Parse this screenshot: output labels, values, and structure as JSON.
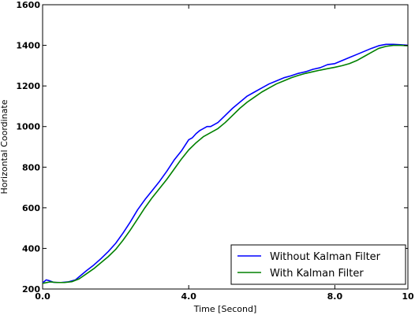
{
  "chart_data": {
    "type": "line",
    "title": "",
    "xlabel": "Time [Second]",
    "ylabel": "Horizontal Coordinate",
    "xlim": [
      0,
      10
    ],
    "ylim": [
      200,
      1600
    ],
    "x_ticks": [
      0,
      4,
      8,
      10
    ],
    "x_tick_labels": [
      "0.0",
      "4.0",
      "8.0",
      "10"
    ],
    "y_ticks": [
      200,
      400,
      600,
      800,
      1000,
      1200,
      1400,
      1600
    ],
    "y_tick_labels": [
      "200",
      "400",
      "600",
      "800",
      "1000",
      "1200",
      "1400",
      "1600"
    ],
    "grid": false,
    "legend_position": "lower-right",
    "series": [
      {
        "name": "Without Kalman Filter",
        "color": "#0000ff",
        "points": [
          [
            0.0,
            230
          ],
          [
            0.1,
            245
          ],
          [
            0.2,
            240
          ],
          [
            0.3,
            233
          ],
          [
            0.5,
            232
          ],
          [
            0.7,
            235
          ],
          [
            0.9,
            245
          ],
          [
            1.0,
            260
          ],
          [
            1.2,
            290
          ],
          [
            1.4,
            318
          ],
          [
            1.6,
            350
          ],
          [
            1.8,
            385
          ],
          [
            2.0,
            425
          ],
          [
            2.2,
            475
          ],
          [
            2.4,
            530
          ],
          [
            2.6,
            590
          ],
          [
            2.8,
            640
          ],
          [
            3.0,
            685
          ],
          [
            3.2,
            730
          ],
          [
            3.4,
            780
          ],
          [
            3.6,
            835
          ],
          [
            3.8,
            880
          ],
          [
            4.0,
            935
          ],
          [
            4.1,
            945
          ],
          [
            4.2,
            965
          ],
          [
            4.3,
            980
          ],
          [
            4.5,
            1000
          ],
          [
            4.6,
            1000
          ],
          [
            4.8,
            1020
          ],
          [
            5.0,
            1055
          ],
          [
            5.2,
            1090
          ],
          [
            5.4,
            1120
          ],
          [
            5.6,
            1150
          ],
          [
            5.8,
            1170
          ],
          [
            6.0,
            1190
          ],
          [
            6.2,
            1210
          ],
          [
            6.4,
            1225
          ],
          [
            6.6,
            1240
          ],
          [
            6.8,
            1250
          ],
          [
            7.0,
            1262
          ],
          [
            7.2,
            1270
          ],
          [
            7.4,
            1282
          ],
          [
            7.6,
            1290
          ],
          [
            7.8,
            1305
          ],
          [
            8.0,
            1310
          ],
          [
            8.2,
            1325
          ],
          [
            8.4,
            1340
          ],
          [
            8.6,
            1355
          ],
          [
            8.8,
            1370
          ],
          [
            9.0,
            1385
          ],
          [
            9.2,
            1398
          ],
          [
            9.4,
            1405
          ],
          [
            9.6,
            1405
          ],
          [
            9.8,
            1403
          ],
          [
            10.0,
            1400
          ]
        ]
      },
      {
        "name": "With Kalman Filter",
        "color": "#008000",
        "points": [
          [
            0.0,
            228
          ],
          [
            0.2,
            235
          ],
          [
            0.4,
            232
          ],
          [
            0.6,
            232
          ],
          [
            0.8,
            236
          ],
          [
            1.0,
            250
          ],
          [
            1.2,
            275
          ],
          [
            1.4,
            300
          ],
          [
            1.6,
            330
          ],
          [
            1.8,
            360
          ],
          [
            2.0,
            395
          ],
          [
            2.2,
            440
          ],
          [
            2.4,
            490
          ],
          [
            2.6,
            545
          ],
          [
            2.8,
            600
          ],
          [
            3.0,
            650
          ],
          [
            3.2,
            695
          ],
          [
            3.4,
            740
          ],
          [
            3.6,
            790
          ],
          [
            3.8,
            840
          ],
          [
            4.0,
            885
          ],
          [
            4.2,
            920
          ],
          [
            4.4,
            950
          ],
          [
            4.6,
            970
          ],
          [
            4.8,
            990
          ],
          [
            5.0,
            1020
          ],
          [
            5.2,
            1055
          ],
          [
            5.4,
            1090
          ],
          [
            5.6,
            1120
          ],
          [
            5.8,
            1145
          ],
          [
            6.0,
            1170
          ],
          [
            6.2,
            1190
          ],
          [
            6.4,
            1210
          ],
          [
            6.6,
            1225
          ],
          [
            6.8,
            1240
          ],
          [
            7.0,
            1252
          ],
          [
            7.2,
            1262
          ],
          [
            7.4,
            1270
          ],
          [
            7.6,
            1278
          ],
          [
            7.8,
            1285
          ],
          [
            8.0,
            1292
          ],
          [
            8.2,
            1300
          ],
          [
            8.4,
            1310
          ],
          [
            8.6,
            1325
          ],
          [
            8.8,
            1345
          ],
          [
            9.0,
            1365
          ],
          [
            9.2,
            1385
          ],
          [
            9.4,
            1395
          ],
          [
            9.6,
            1400
          ],
          [
            9.8,
            1400
          ],
          [
            10.0,
            1398
          ]
        ]
      }
    ]
  }
}
